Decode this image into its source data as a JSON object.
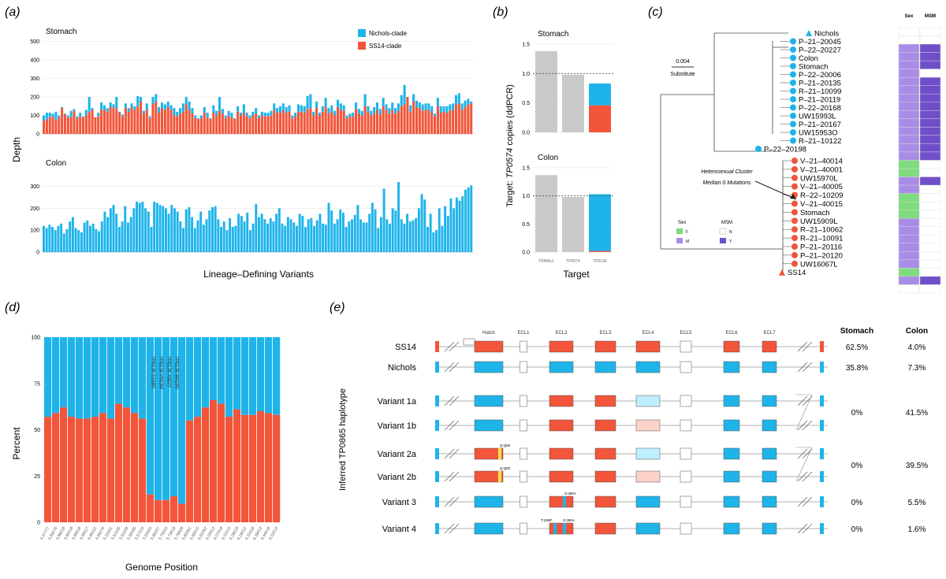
{
  "colors": {
    "blue": "#1eb4ea",
    "red": "#f2553a",
    "gray": "#c9c9c9",
    "green": "#7fdb7f",
    "purple_light": "#a98ce6",
    "purple_dark": "#6f4fc9",
    "pale_blue": "#bfeeff",
    "pale_red": "#fbd1c8"
  },
  "chart_data": [
    {
      "panel": "(a)",
      "type": "bar",
      "xlabel": "Lineage–Defining Variants",
      "ylabel": "Depth",
      "legend": [
        "Nichols-clade",
        "SS14-clade"
      ],
      "legend_position": "top-right",
      "facets": [
        {
          "name": "Stomach",
          "yticks": [
            "500",
            "400",
            "300",
            "200",
            "100",
            "0"
          ],
          "ylim": [
            0,
            520
          ],
          "series": [
            {
              "name": "Nichols-clade"
            },
            {
              "name": "SS14-clade"
            }
          ],
          "nichols": [
            100,
            115,
            115,
            110,
            120,
            100,
            145,
            110,
            100,
            125,
            135,
            95,
            115,
            95,
            130,
            200,
            140,
            85,
            115,
            170,
            155,
            140,
            170,
            160,
            200,
            120,
            105,
            165,
            140,
            165,
            150,
            205,
            200,
            125,
            165,
            95,
            200,
            215,
            145,
            170,
            160,
            175,
            155,
            140,
            120,
            140,
            165,
            200,
            175,
            140,
            100,
            85,
            100,
            145,
            115,
            85,
            155,
            125,
            200,
            135,
            100,
            125,
            115,
            85,
            150,
            115,
            160,
            115,
            100,
            120,
            140,
            100,
            120,
            115,
            115,
            125,
            165,
            140,
            150,
            165,
            145,
            155,
            100,
            115,
            160,
            155,
            150,
            205,
            215,
            120,
            175,
            115,
            150,
            195,
            140,
            155,
            125,
            185,
            165,
            155,
            100,
            110,
            115,
            170,
            135,
            125,
            215,
            150,
            125,
            145,
            170,
            135,
            195,
            160,
            140,
            170,
            140,
            165,
            210,
            265,
            200,
            155,
            215,
            180,
            170,
            160,
            165,
            165,
            150,
            110,
            195,
            150,
            150,
            150,
            160,
            165,
            210,
            220,
            165,
            180,
            190,
            175
          ],
          "ss14": [
            70,
            80,
            90,
            95,
            75,
            90,
            140,
            105,
            90,
            90,
            125,
            85,
            95,
            90,
            100,
            120,
            130,
            90,
            95,
            130,
            130,
            120,
            145,
            145,
            135,
            115,
            95,
            140,
            120,
            145,
            130,
            150,
            175,
            110,
            130,
            85,
            160,
            175,
            115,
            140,
            130,
            145,
            130,
            100,
            95,
            110,
            120,
            160,
            130,
            110,
            85,
            80,
            85,
            115,
            90,
            80,
            115,
            100,
            125,
            110,
            85,
            100,
            90,
            80,
            120,
            100,
            115,
            95,
            85,
            100,
            110,
            85,
            100,
            95,
            95,
            100,
            130,
            115,
            115,
            130,
            115,
            120,
            85,
            95,
            120,
            120,
            115,
            135,
            140,
            100,
            140,
            100,
            120,
            145,
            110,
            120,
            100,
            145,
            130,
            125,
            85,
            95,
            95,
            135,
            110,
            100,
            150,
            120,
            100,
            110,
            130,
            105,
            150,
            130,
            110,
            130,
            110,
            125,
            150,
            160,
            200,
            120,
            175,
            145,
            140,
            125,
            130,
            130,
            115,
            95,
            150,
            115,
            120,
            115,
            125,
            130,
            160,
            165,
            130,
            145,
            160,
            165
          ]
        },
        {
          "name": "Colon",
          "yticks": [
            "300",
            "200",
            "100",
            "0"
          ],
          "ylim": [
            0,
            360
          ],
          "series": [
            {
              "name": "Nichols-clade"
            }
          ],
          "values": [
            120,
            110,
            125,
            115,
            100,
            120,
            130,
            85,
            105,
            140,
            160,
            110,
            100,
            90,
            135,
            145,
            120,
            130,
            105,
            95,
            140,
            185,
            160,
            200,
            215,
            175,
            115,
            140,
            210,
            135,
            160,
            200,
            230,
            225,
            230,
            200,
            185,
            115,
            230,
            225,
            215,
            210,
            200,
            175,
            215,
            200,
            185,
            140,
            110,
            195,
            205,
            160,
            110,
            145,
            185,
            125,
            150,
            190,
            205,
            210,
            150,
            115,
            140,
            100,
            155,
            115,
            120,
            175,
            165,
            140,
            180,
            100,
            130,
            220,
            160,
            175,
            150,
            130,
            155,
            140,
            175,
            200,
            130,
            120,
            160,
            150,
            135,
            120,
            175,
            165,
            115,
            150,
            155,
            120,
            145,
            175,
            130,
            125,
            225,
            190,
            130,
            150,
            195,
            180,
            115,
            140,
            150,
            170,
            215,
            150,
            135,
            135,
            175,
            225,
            195,
            110,
            160,
            290,
            150,
            130,
            200,
            190,
            320,
            150,
            130,
            175,
            140,
            145,
            155,
            200,
            265,
            240,
            115,
            175,
            90,
            100,
            200,
            120,
            210,
            165,
            245,
            200,
            250,
            235,
            255,
            285,
            295,
            305
          ]
        }
      ]
    },
    {
      "panel": "(b)",
      "type": "bar",
      "ylabel_prefix": "Target:",
      "ylabel_target": "TP0574",
      "ylabel_suffix": "copies (ddPCR)",
      "xlabel": "Target",
      "categories": [
        "TPANIc1",
        "TP0574",
        "TP0136"
      ],
      "yticks": [
        "1.5",
        "1.0",
        "0.5",
        "0.0"
      ],
      "ylim": [
        0,
        1.5
      ],
      "reference_line": 1.0,
      "facets": [
        {
          "name": "Stomach",
          "values": [
            1.38,
            0.98,
            0.83
          ],
          "split": {
            "red": 0.46,
            "blue": 0.37
          }
        },
        {
          "name": "Colon",
          "values": [
            1.37,
            0.98,
            1.03
          ],
          "split": {
            "red": 0.02,
            "blue": 1.01
          }
        }
      ]
    },
    {
      "panel": "(c)",
      "type": "tree",
      "scale_value": "0.004",
      "scale_unit": "Substitute",
      "annotation": [
        "Heterosexual Cluster",
        "Median 0 Mutations"
      ],
      "tips_nichols": [
        "Nichols",
        "P–21–20045",
        "P–22–20227",
        "Colon",
        "Stomach",
        "P–22–20006",
        "P–21–20135",
        "R–21–10099",
        "P–21–20119",
        "P–22–20168",
        "UW15993L",
        "P–21–20167",
        "UW15953O",
        "R–21–10122",
        "P–22–20198"
      ],
      "tips_ss14": [
        "V–21–40014",
        "V–21–40001",
        "UW15970L",
        "V–21–40005",
        "R–22–10209",
        "V–21–40015",
        "Stomach",
        "UW15909L",
        "R–21–10062",
        "R–21–10091",
        "P–21–20116",
        "P–21–20120",
        "UW16067L",
        "SS14"
      ],
      "legend_sex_title": "Sex",
      "legend_sex": [
        "F",
        "M"
      ],
      "legend_msm_title": "MSM",
      "legend_msm": [
        "N",
        "Y"
      ],
      "heatmap_headers": [
        "Sex",
        "MSM"
      ],
      "sex_column": [
        "W",
        "W",
        "M",
        "M",
        "M",
        "M",
        "M",
        "M",
        "M",
        "M",
        "M",
        "M",
        "M",
        "M",
        "M",
        "M",
        "F",
        "F",
        "M",
        "M",
        "F",
        "F",
        "F",
        "M",
        "M",
        "M",
        "M",
        "M",
        "M",
        "F",
        "M",
        "W"
      ],
      "msm_column": [
        "W",
        "N",
        "Y",
        "Y",
        "Y",
        "N",
        "Y",
        "Y",
        "Y",
        "Y",
        "Y",
        "Y",
        "Y",
        "Y",
        "Y",
        "Y",
        "N",
        "N",
        "Y",
        "N",
        "N",
        "N",
        "N",
        "N",
        "N",
        "N",
        "N",
        "N",
        "N",
        "N",
        "Y",
        "W"
      ]
    },
    {
      "panel": "(d)",
      "type": "bar",
      "stacked": true,
      "xlabel": "Genome Position",
      "ylabel": "Percent",
      "yticks": [
        "100",
        "75",
        "50",
        "25",
        "0"
      ],
      "ylim": [
        0,
        100
      ],
      "red_percent": [
        57,
        59,
        62,
        57,
        56,
        56,
        57,
        59,
        56,
        64,
        62,
        59,
        56,
        15,
        12,
        12,
        14,
        10,
        55,
        57,
        62,
        66,
        64,
        57,
        61,
        58,
        58,
        60,
        59,
        58
      ],
      "annotations": [
        "TP0136 S168G",
        "TP0136 V663M",
        "TP0136 A663T",
        "TP0136 M418V"
      ],
      "position_labels": [
        "4.47777",
        "4.83276",
        "4.88219",
        "4.96118",
        "4.98118",
        "4.99117",
        "4.99152",
        "4.99276",
        "5.12301",
        "5.51106",
        "5.51159",
        "5.56185",
        "5.57223",
        "5.63303",
        "5.66207",
        "5.70203",
        "5.73018",
        "5.79009",
        "5.82081",
        "5.90015",
        "5.91062",
        "6.02013",
        "6.07018",
        "6.11014",
        "6.18019",
        "6.24012",
        "6.31018",
        "6.39012",
        "6.44019",
        "6.52014"
      ]
    },
    {
      "panel": "(e)",
      "type": "table",
      "ylabel": "Inferred TP0865 haplotype",
      "headers": [
        "Stomach",
        "Colon"
      ],
      "loop_labels": [
        "Hatch",
        "ECL1",
        "ECL2",
        "ECL3",
        "ECL4",
        "ECL5",
        "ECL6",
        "ECL7"
      ],
      "rows": [
        {
          "name": "SS14",
          "stomach": "62.5%",
          "colon": "4.0%"
        },
        {
          "name": "Nichols",
          "stomach": "35.8%",
          "colon": "7.3%"
        },
        {
          "name": "Variant 1a",
          "stomach": "0%",
          "colon": "41.5%"
        },
        {
          "name": "Variant 1b",
          "stomach": "",
          "colon": ""
        },
        {
          "name": "Variant 2a",
          "stomach": "0%",
          "colon": "39.5%"
        },
        {
          "name": "Variant 2b",
          "stomach": "",
          "colon": ""
        },
        {
          "name": "Variant 3",
          "stomach": "0%",
          "colon": "5.5%"
        },
        {
          "name": "Variant 4",
          "stomach": "0%",
          "colon": "1.6%"
        }
      ],
      "mutation_labels": {
        "q": "Q:Q50",
        "s": "S:390A",
        "t": "T:199P"
      }
    }
  ],
  "labels": {
    "panel_a": "(a)",
    "panel_b": "(b)",
    "panel_c": "(c)",
    "panel_d": "(d)",
    "panel_e": "(e)"
  }
}
